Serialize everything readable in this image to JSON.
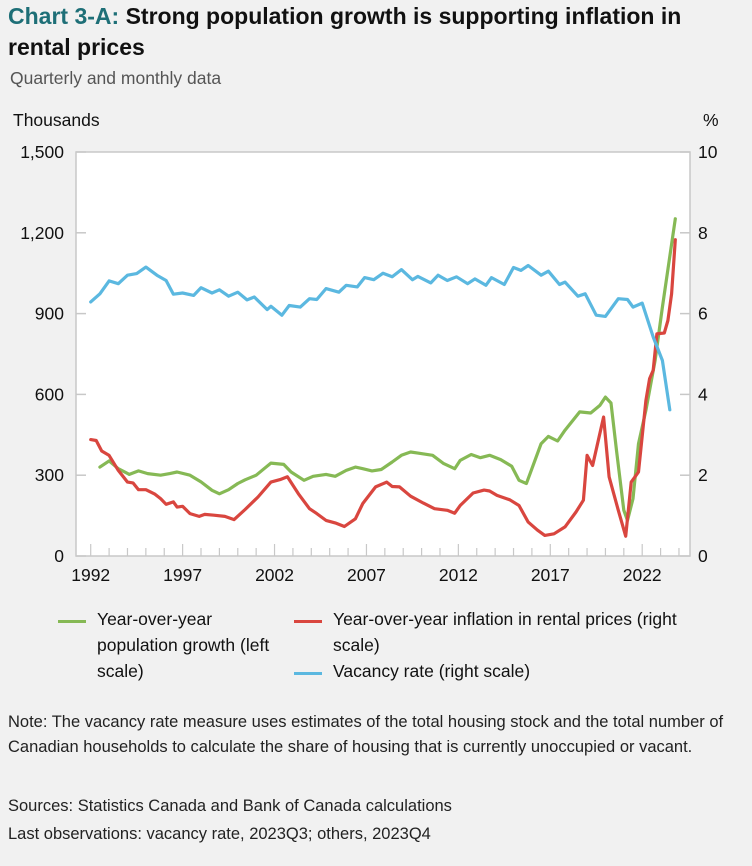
{
  "header": {
    "title_lead": "Chart 3-A:",
    "title_rest": "Strong population growth is supporting inflation in rental prices",
    "subtitle": "Quarterly and monthly data"
  },
  "legend": {
    "green": "Year-over-year population growth (left scale)",
    "red": "Year-over-year inflation in rental prices (right scale)",
    "blue": "Vacancy rate (right scale)"
  },
  "notes": {
    "note": "Note: The vacancy rate measure uses estimates of the total housing stock and the total number of Canadian households to calculate the share of housing that is currently unoccupied or vacant.",
    "sources": "Sources: Statistics Canada and Bank of Canada calculations",
    "last": "Last observations: vacancy rate, 2023Q3; others, 2023Q4"
  },
  "chart_data": {
    "type": "line",
    "title": "Strong population growth is supporting inflation in rental prices",
    "left_axis": {
      "label": "Thousands",
      "ylim": [
        0,
        1500
      ],
      "ticks": [
        0,
        300,
        600,
        900,
        1200,
        1500
      ],
      "tick_labels": [
        "0",
        "300",
        "600",
        "900",
        "1,200",
        "1,500"
      ]
    },
    "right_axis": {
      "label": "%",
      "ylim": [
        0,
        10
      ],
      "ticks": [
        0,
        2,
        4,
        6,
        8,
        10
      ],
      "tick_labels": [
        "0",
        "2",
        "4",
        "6",
        "8",
        "10"
      ]
    },
    "x_axis": {
      "xlim": [
        1991.2,
        2024.6
      ],
      "tick_labels": [
        "1992",
        "1997",
        "2002",
        "2007",
        "2012",
        "2017",
        "2022"
      ],
      "ticks": [
        1992,
        1997,
        2002,
        2007,
        2012,
        2017,
        2022
      ]
    },
    "grid": false,
    "legend_placement": "bottom",
    "series": [
      {
        "name": "Year-over-year population growth (left scale)",
        "axis": "left",
        "color": "#86b955",
        "x": [
          1992.5,
          1993.0,
          1993.5,
          1994.1,
          1994.6,
          1995.1,
          1995.8,
          1996.3,
          1996.7,
          1997.4,
          1998.0,
          1998.6,
          1999.0,
          1999.5,
          2000.0,
          2000.4,
          2001.0,
          2001.5,
          2001.8,
          2002.5,
          2002.9,
          2003.6,
          2004.1,
          2004.8,
          2005.3,
          2005.9,
          2006.4,
          2006.8,
          2007.3,
          2007.8,
          2008.4,
          2008.9,
          2009.4,
          2009.8,
          2010.6,
          2011.2,
          2011.8,
          2012.1,
          2012.7,
          2013.2,
          2013.7,
          2014.3,
          2014.9,
          2015.3,
          2015.7,
          2015.9,
          2016.5,
          2016.9,
          2017.4,
          2017.8,
          2018.6,
          2019.2,
          2019.7,
          2020.0,
          2020.3,
          2020.6,
          2021.0,
          2021.2,
          2021.5,
          2021.8,
          2022.2,
          2022.7,
          2023.1,
          2023.8
        ],
        "y": [
          330,
          353,
          324,
          303,
          316,
          306,
          300,
          306,
          312,
          300,
          275,
          244,
          231,
          246,
          269,
          283,
          300,
          328,
          345,
          340,
          312,
          281,
          296,
          303,
          296,
          318,
          330,
          324,
          316,
          321,
          349,
          374,
          386,
          382,
          374,
          343,
          324,
          355,
          377,
          365,
          374,
          358,
          333,
          281,
          269,
          306,
          417,
          444,
          427,
          467,
          535,
          531,
          559,
          590,
          568,
          392,
          170,
          132,
          213,
          417,
          541,
          726,
          924,
          1252
        ]
      },
      {
        "name": "Year-over-year inflation in rental prices (right scale)",
        "axis": "right",
        "color": "#d9463f",
        "x": [
          1992.0,
          1992.3,
          1992.6,
          1993.0,
          1993.5,
          1994.0,
          1994.3,
          1994.6,
          1995.0,
          1995.5,
          1995.8,
          1996.1,
          1996.5,
          1996.7,
          1997.0,
          1997.4,
          1997.9,
          1998.2,
          1998.7,
          1999.3,
          1999.8,
          2000.4,
          2001.1,
          2001.8,
          2002.3,
          2002.7,
          2003.3,
          2003.9,
          2004.3,
          2004.8,
          2005.3,
          2005.8,
          2006.4,
          2006.8,
          2007.5,
          2008.1,
          2008.4,
          2008.8,
          2009.4,
          2010.1,
          2010.7,
          2011.4,
          2011.8,
          2012.1,
          2012.8,
          2013.4,
          2013.7,
          2014.1,
          2014.8,
          2015.3,
          2015.8,
          2016.3,
          2016.7,
          2017.2,
          2017.8,
          2018.4,
          2018.8,
          2019.0,
          2019.3,
          2019.9,
          2020.2,
          2020.7,
          2021.1,
          2021.4,
          2021.8,
          2022.2,
          2022.4,
          2022.6,
          2022.8,
          2023.2,
          2023.4,
          2023.6,
          2023.8
        ],
        "y": [
          2.88,
          2.86,
          2.6,
          2.49,
          2.12,
          1.83,
          1.81,
          1.64,
          1.64,
          1.53,
          1.42,
          1.28,
          1.34,
          1.21,
          1.23,
          1.05,
          0.98,
          1.03,
          1.01,
          0.98,
          0.9,
          1.15,
          1.46,
          1.83,
          1.89,
          1.96,
          1.54,
          1.17,
          1.05,
          0.88,
          0.82,
          0.73,
          0.92,
          1.3,
          1.71,
          1.83,
          1.72,
          1.71,
          1.48,
          1.31,
          1.17,
          1.13,
          1.06,
          1.25,
          1.56,
          1.63,
          1.61,
          1.5,
          1.39,
          1.25,
          0.84,
          0.64,
          0.51,
          0.55,
          0.72,
          1.09,
          1.38,
          2.49,
          2.24,
          3.44,
          1.96,
          1.13,
          0.49,
          1.83,
          2.08,
          3.85,
          4.39,
          4.6,
          5.5,
          5.52,
          5.83,
          6.49,
          7.83
        ]
      },
      {
        "name": "Vacancy rate (right scale)",
        "axis": "right",
        "color": "#5bb8e0",
        "x": [
          1992.0,
          1992.5,
          1993.0,
          1993.5,
          1994.0,
          1994.5,
          1995.0,
          1995.6,
          1996.1,
          1996.5,
          1997.0,
          1997.6,
          1998.0,
          1998.6,
          1999.0,
          1999.5,
          2000.0,
          2000.5,
          2000.9,
          2001.6,
          2001.8,
          2002.4,
          2002.8,
          2003.4,
          2003.9,
          2004.3,
          2004.8,
          2005.5,
          2005.9,
          2006.5,
          2006.9,
          2007.4,
          2007.9,
          2008.4,
          2008.9,
          2009.5,
          2009.8,
          2010.5,
          2010.9,
          2011.4,
          2011.9,
          2012.5,
          2012.9,
          2013.5,
          2013.8,
          2014.5,
          2015.0,
          2015.4,
          2015.8,
          2016.5,
          2016.9,
          2017.5,
          2017.8,
          2018.5,
          2018.9,
          2019.5,
          2020.0,
          2020.7,
          2021.2,
          2021.5,
          2022.0,
          2022.6,
          2023.1,
          2023.5
        ],
        "y": [
          6.29,
          6.49,
          6.81,
          6.74,
          6.95,
          6.99,
          7.15,
          6.95,
          6.82,
          6.48,
          6.51,
          6.45,
          6.64,
          6.51,
          6.59,
          6.43,
          6.53,
          6.34,
          6.41,
          6.1,
          6.18,
          5.96,
          6.2,
          6.16,
          6.37,
          6.35,
          6.62,
          6.53,
          6.7,
          6.66,
          6.89,
          6.84,
          7.0,
          6.91,
          7.09,
          6.84,
          6.92,
          6.76,
          6.95,
          6.82,
          6.91,
          6.74,
          6.86,
          6.7,
          6.89,
          6.72,
          7.14,
          7.07,
          7.19,
          6.95,
          7.05,
          6.72,
          6.78,
          6.43,
          6.49,
          5.96,
          5.93,
          6.37,
          6.35,
          6.16,
          6.26,
          5.42,
          4.84,
          3.62
        ]
      }
    ]
  }
}
